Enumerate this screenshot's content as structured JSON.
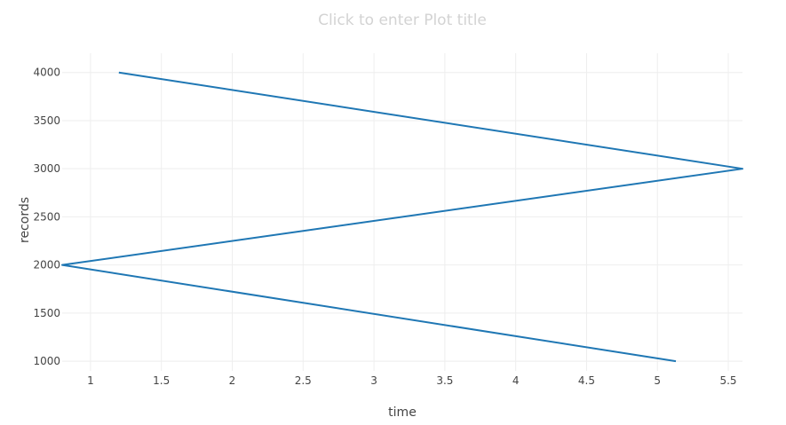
{
  "plot": {
    "title_placeholder": "Click to enter Plot title"
  },
  "chart_data": {
    "type": "line",
    "title": "",
    "xlabel": "time",
    "ylabel": "records",
    "xlim": [
      0.8,
      5.6
    ],
    "ylim": [
      900,
      4200
    ],
    "x_ticks": [
      {
        "value": 1,
        "label": "1"
      },
      {
        "value": 1.5,
        "label": "1.5"
      },
      {
        "value": 2,
        "label": "2"
      },
      {
        "value": 2.5,
        "label": "2.5"
      },
      {
        "value": 3,
        "label": "3"
      },
      {
        "value": 3.5,
        "label": "3.5"
      },
      {
        "value": 4,
        "label": "4"
      },
      {
        "value": 4.5,
        "label": "4.5"
      },
      {
        "value": 5,
        "label": "5"
      },
      {
        "value": 5.5,
        "label": "5.5"
      }
    ],
    "y_ticks": [
      {
        "value": 1000,
        "label": "1000"
      },
      {
        "value": 1500,
        "label": "1500"
      },
      {
        "value": 2000,
        "label": "2000"
      },
      {
        "value": 2500,
        "label": "2500"
      },
      {
        "value": 3000,
        "label": "3000"
      },
      {
        "value": 3500,
        "label": "3500"
      },
      {
        "value": 4000,
        "label": "4000"
      }
    ],
    "grid": true,
    "legend": "none",
    "series": [
      {
        "color": "#1f77b4",
        "x": [
          1.2,
          5.6,
          0.8,
          5.13
        ],
        "y": [
          4000,
          3000,
          2000,
          1000
        ]
      }
    ]
  }
}
